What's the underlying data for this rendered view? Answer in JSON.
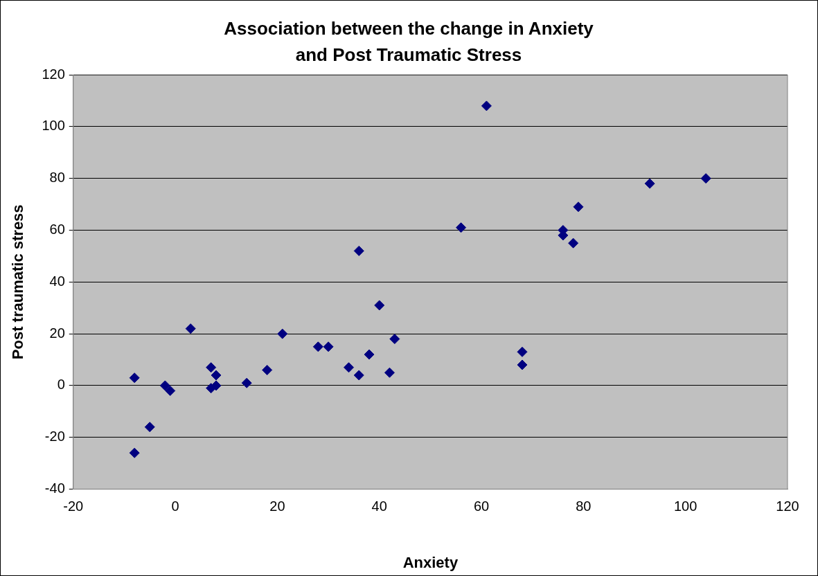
{
  "chart_data": {
    "type": "scatter",
    "title": "Association between the change in Anxiety and Post Traumatic Stress",
    "xlabel": "Anxiety",
    "ylabel": "Post traumatic stress",
    "x": [
      -8,
      -8,
      -5,
      -2,
      -1,
      3,
      7,
      7,
      8,
      8,
      14,
      18,
      21,
      28,
      30,
      34,
      36,
      36,
      38,
      40,
      42,
      43,
      56,
      61,
      68,
      68,
      76,
      76,
      78,
      79,
      93,
      104
    ],
    "series": [
      {
        "color": "#000080",
        "values": [
          3,
          -26,
          -16,
          0,
          -2,
          22,
          7,
          -1,
          4,
          0,
          1,
          6,
          20,
          15,
          15,
          7,
          52,
          4,
          12,
          31,
          5,
          18,
          61,
          108,
          13,
          8,
          60,
          58,
          55,
          69,
          78,
          80
        ]
      }
    ],
    "xlim": [
      -20,
      120
    ],
    "xticks": [
      -20,
      0,
      20,
      40,
      60,
      80,
      100,
      120
    ],
    "ylim": [
      -40,
      120
    ],
    "yticks": [
      -40,
      -20,
      0,
      20,
      40,
      60,
      80,
      100,
      120
    ],
    "grid": "y",
    "legend": false,
    "marker": "diamond"
  }
}
